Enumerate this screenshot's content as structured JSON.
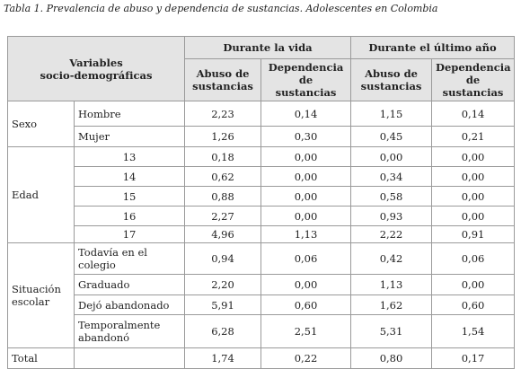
{
  "caption": "Tabla 1. Prevalencia de abuso y dependencia de sustancias. Adolescentes en Colombia",
  "header": {
    "variables": [
      "Variables",
      "socio-demográficas"
    ],
    "groups": [
      "Durante la vida",
      "Durante el último año"
    ],
    "columns": [
      [
        "Abuso de",
        "sustancias"
      ],
      [
        "Dependencia",
        "de",
        "sustancias"
      ],
      [
        "Abuso de",
        "sustancias"
      ],
      [
        "Dependencia",
        "de",
        "sustancias"
      ]
    ]
  },
  "sections": [
    {
      "label": "Sexo",
      "rows": [
        {
          "label": "Hombre",
          "values": [
            "2,23",
            "0,14",
            "1,15",
            "0,14"
          ]
        },
        {
          "label": "Mujer",
          "values": [
            "1,26",
            "0,30",
            "0,45",
            "0,21"
          ]
        }
      ]
    },
    {
      "label": "Edad",
      "rows": [
        {
          "label": "13",
          "values": [
            "0,18",
            "0,00",
            "0,00",
            "0,00"
          ]
        },
        {
          "label": "14",
          "values": [
            "0,62",
            "0,00",
            "0,34",
            "0,00"
          ]
        },
        {
          "label": "15",
          "values": [
            "0,88",
            "0,00",
            "0,58",
            "0,00"
          ]
        },
        {
          "label": "16",
          "values": [
            "2,27",
            "0,00",
            "0,93",
            "0,00"
          ]
        },
        {
          "label": "17",
          "values": [
            "4,96",
            "1,13",
            "2,22",
            "0,91"
          ]
        }
      ]
    },
    {
      "label": "Situación escolar",
      "rows": [
        {
          "label": "Todavía en el colegio",
          "values": [
            "0,94",
            "0,06",
            "0,42",
            "0,06"
          ]
        },
        {
          "label": "Graduado",
          "values": [
            "2,20",
            "0,00",
            "1,13",
            "0,00"
          ]
        },
        {
          "label": "Dejó abandonado",
          "values": [
            "5,91",
            "0,60",
            "1,62",
            "0,60"
          ]
        },
        {
          "label": "Temporalmente abandonó",
          "values": [
            "6,28",
            "2,51",
            "5,31",
            "1,54"
          ]
        }
      ]
    }
  ],
  "total": {
    "label": "Total",
    "values": [
      "1,74",
      "0,22",
      "0,80",
      "0,17"
    ]
  }
}
